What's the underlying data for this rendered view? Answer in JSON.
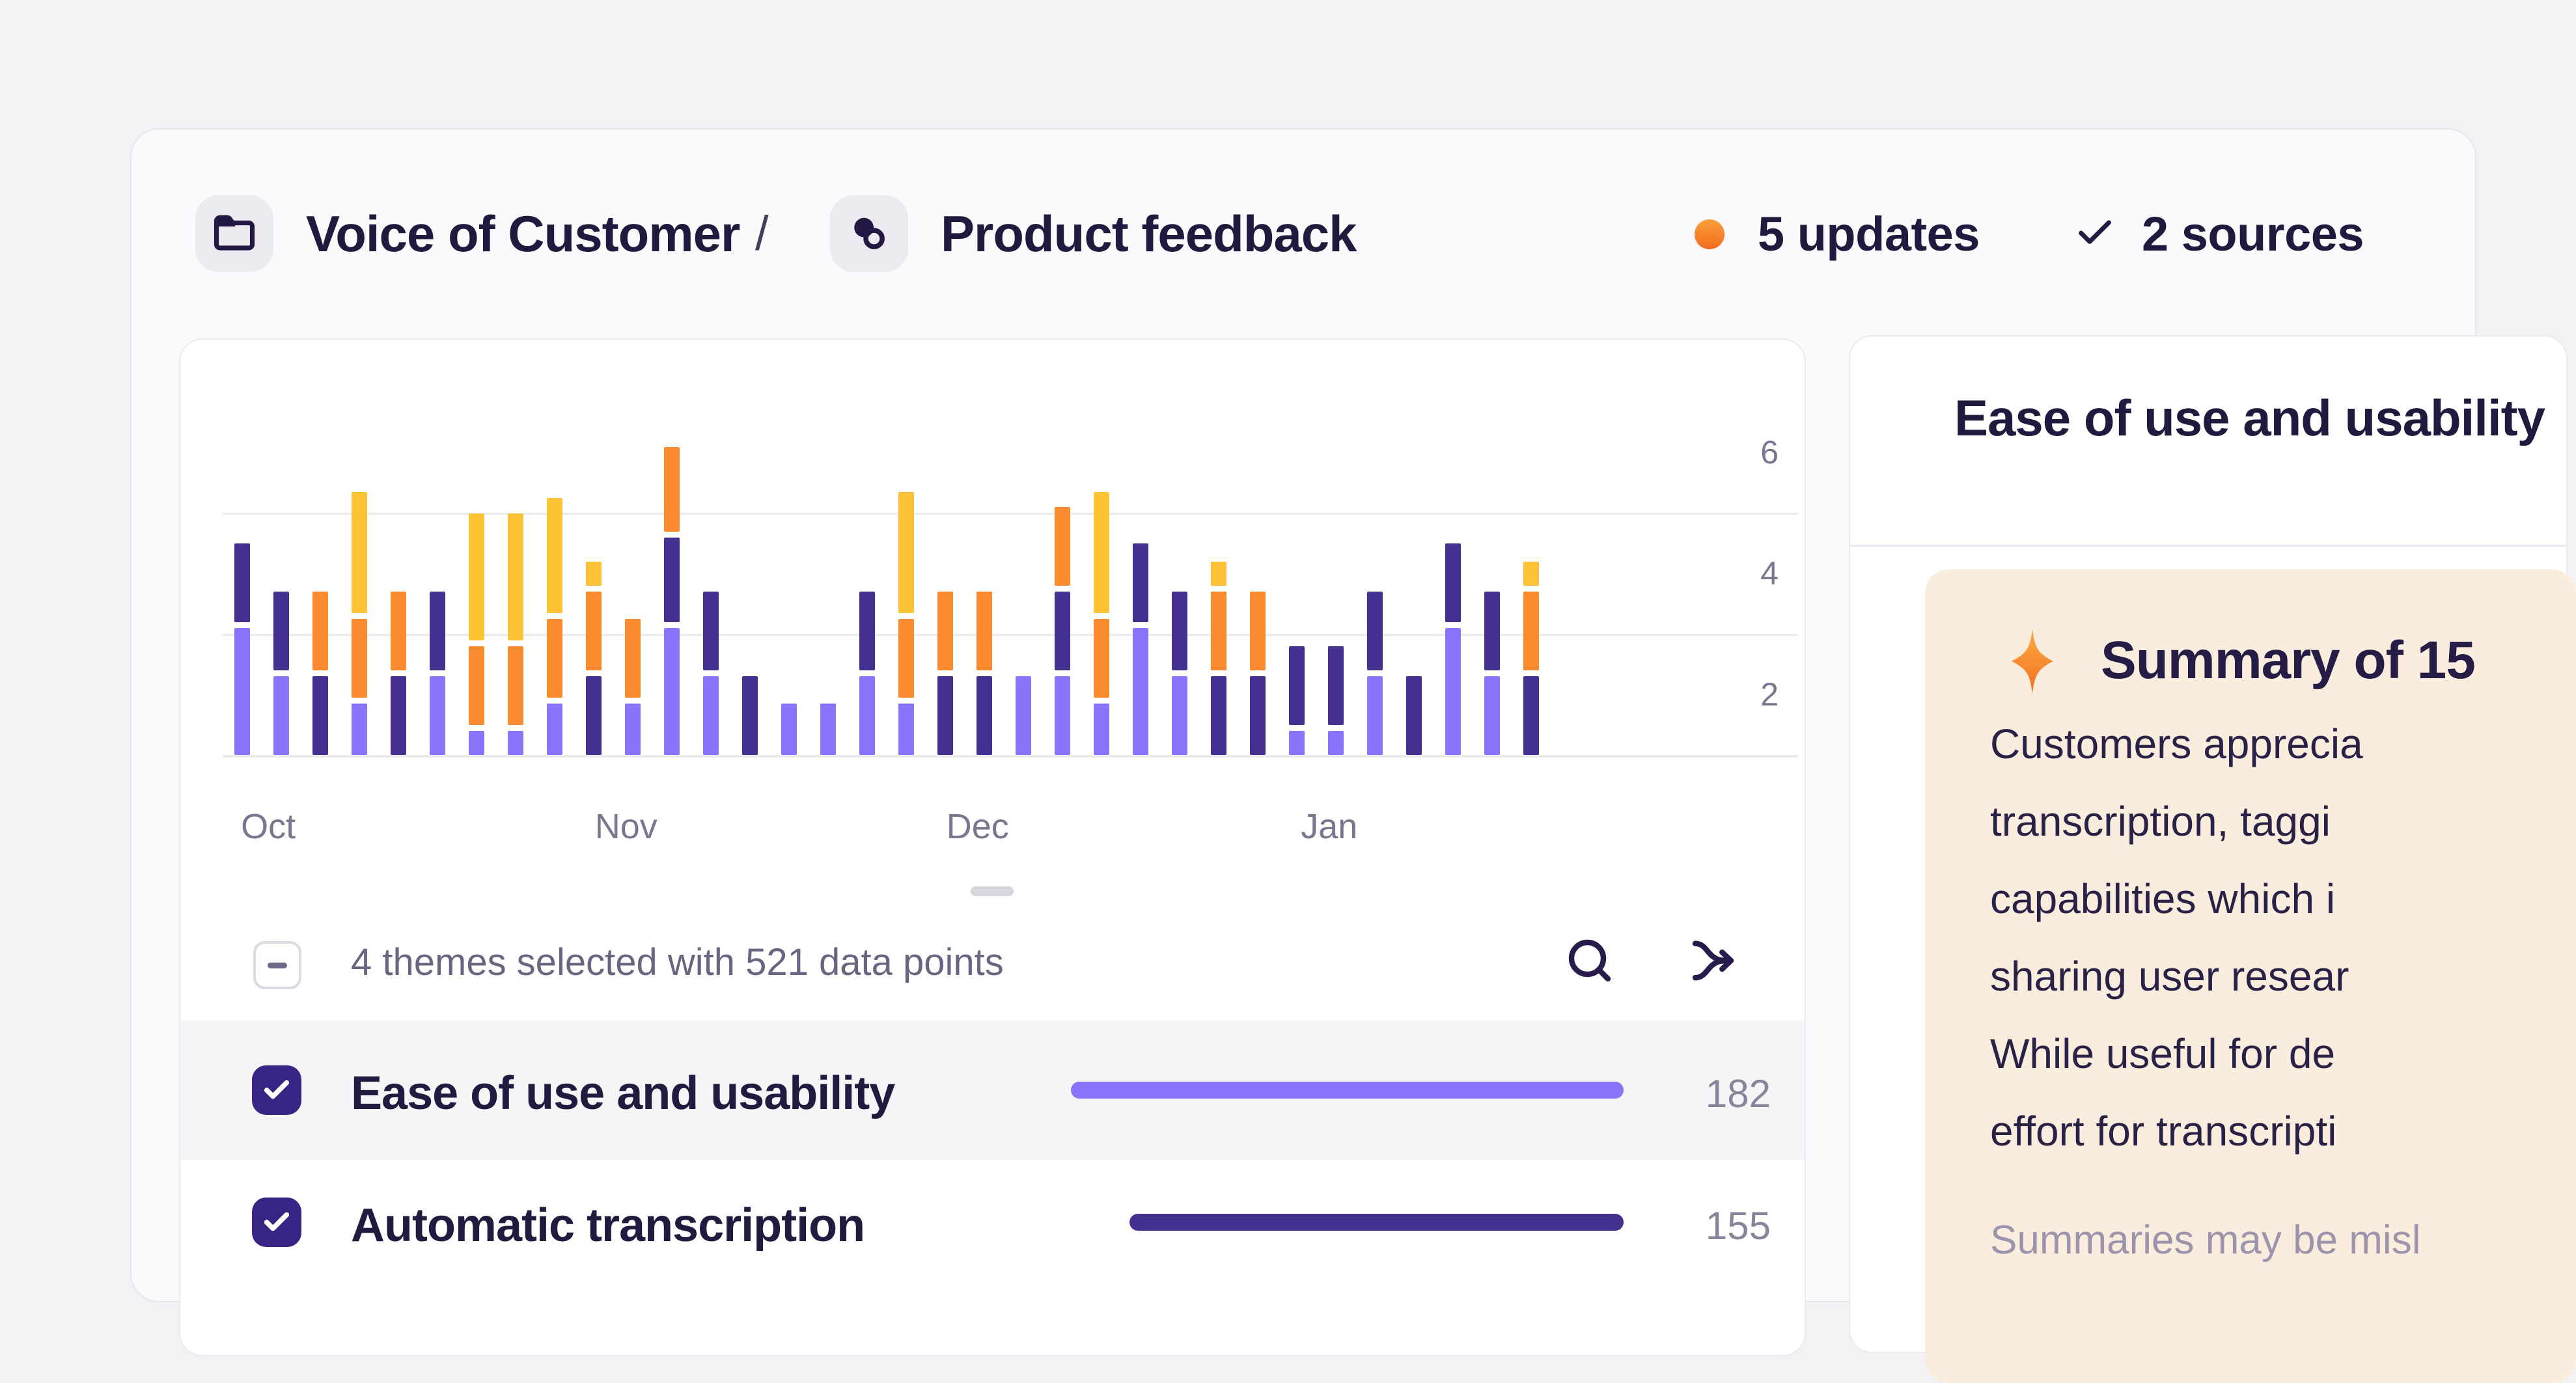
{
  "header": {
    "breadcrumb": [
      {
        "label": "Voice of Customer",
        "icon": "folder-icon"
      },
      {
        "label": "Product feedback",
        "icon": "theme-circles-icon"
      }
    ],
    "separator": "/",
    "status": {
      "updates_label": "5 updates",
      "sources_label": "2 sources",
      "updates_dot_color": "#F97316"
    }
  },
  "chart_data": {
    "type": "bar",
    "subtype": "stacked-segments-timeline",
    "title": "",
    "xlabel": "",
    "ylabel": "",
    "ylim": [
      0,
      7
    ],
    "y_ticks": [
      6,
      4,
      2
    ],
    "gridlines_at": [
      4,
      2
    ],
    "legend_position": "none",
    "x_axis_months": [
      {
        "label": "Oct",
        "col_pos": 0.67
      },
      {
        "label": "Nov",
        "col_pos": 9.83
      },
      {
        "label": "Dec",
        "col_pos": 18.83
      },
      {
        "label": "Jan",
        "col_pos": 27.83
      }
    ],
    "themes": {
      "t1": {
        "label": "Ease of use and usability",
        "color": "#8B74FB"
      },
      "t2": {
        "label": "Automatic transcription",
        "color": "#46308F"
      },
      "t3": {
        "label": "",
        "color": "#F98A2E"
      },
      "t4": {
        "label": "",
        "color": "#FBC335"
      }
    },
    "note": "segment values are estimated data-point counts read from bar heights (axis units)",
    "columns": [
      {
        "segments": [
          [
            "t1",
            2.1
          ],
          [
            "t2",
            1.3
          ]
        ]
      },
      {
        "segments": [
          [
            "t1",
            1.3
          ],
          [
            "t2",
            1.3
          ]
        ]
      },
      {
        "segments": [
          [
            "t2",
            1.3
          ],
          [
            "t3",
            1.3
          ]
        ]
      },
      {
        "segments": [
          [
            "t1",
            0.85
          ],
          [
            "t3",
            1.3
          ],
          [
            "t4",
            2.0
          ]
        ]
      },
      {
        "segments": [
          [
            "t2",
            1.3
          ],
          [
            "t3",
            1.3
          ]
        ]
      },
      {
        "segments": [
          [
            "t1",
            1.3
          ],
          [
            "t2",
            1.3
          ]
        ]
      },
      {
        "segments": [
          [
            "t1",
            0.4
          ],
          [
            "t3",
            1.3
          ],
          [
            "t4",
            2.1
          ]
        ]
      },
      {
        "segments": [
          [
            "t1",
            0.4
          ],
          [
            "t3",
            1.3
          ],
          [
            "t4",
            2.1
          ]
        ]
      },
      {
        "segments": [
          [
            "t1",
            0.85
          ],
          [
            "t3",
            1.3
          ],
          [
            "t4",
            1.9
          ]
        ]
      },
      {
        "segments": [
          [
            "t2",
            1.3
          ],
          [
            "t3",
            1.3
          ],
          [
            "t4",
            0.4
          ]
        ]
      },
      {
        "segments": [
          [
            "t1",
            0.85
          ],
          [
            "t3",
            1.3
          ]
        ]
      },
      {
        "segments": [
          [
            "t1",
            2.1
          ],
          [
            "t2",
            1.4
          ],
          [
            "t3",
            1.4
          ]
        ]
      },
      {
        "segments": [
          [
            "t1",
            1.3
          ],
          [
            "t2",
            1.3
          ]
        ]
      },
      {
        "segments": [
          [
            "t2",
            1.3
          ]
        ]
      },
      {
        "segments": [
          [
            "t1",
            0.85
          ]
        ]
      },
      {
        "segments": [
          [
            "t1",
            0.85
          ]
        ]
      },
      {
        "segments": [
          [
            "t1",
            1.3
          ],
          [
            "t2",
            1.3
          ]
        ]
      },
      {
        "segments": [
          [
            "t1",
            0.85
          ],
          [
            "t3",
            1.3
          ],
          [
            "t4",
            2.0
          ]
        ]
      },
      {
        "segments": [
          [
            "t2",
            1.3
          ],
          [
            "t3",
            1.3
          ]
        ]
      },
      {
        "segments": [
          [
            "t2",
            1.3
          ],
          [
            "t3",
            1.3
          ]
        ]
      },
      {
        "segments": [
          [
            "t1",
            1.3
          ]
        ]
      },
      {
        "segments": [
          [
            "t1",
            1.3
          ],
          [
            "t2",
            1.3
          ],
          [
            "t3",
            1.3
          ]
        ]
      },
      {
        "segments": [
          [
            "t1",
            0.85
          ],
          [
            "t3",
            1.3
          ],
          [
            "t4",
            2.0
          ]
        ]
      },
      {
        "segments": [
          [
            "t1",
            2.1
          ],
          [
            "t2",
            1.3
          ]
        ]
      },
      {
        "segments": [
          [
            "t1",
            1.3
          ],
          [
            "t2",
            1.3
          ]
        ]
      },
      {
        "segments": [
          [
            "t2",
            1.3
          ],
          [
            "t3",
            1.3
          ],
          [
            "t4",
            0.4
          ]
        ]
      },
      {
        "segments": [
          [
            "t2",
            1.3
          ],
          [
            "t3",
            1.3
          ]
        ]
      },
      {
        "segments": [
          [
            "t1",
            0.4
          ],
          [
            "t2",
            1.3
          ]
        ]
      },
      {
        "segments": [
          [
            "t1",
            0.4
          ],
          [
            "t2",
            1.3
          ]
        ]
      },
      {
        "segments": [
          [
            "t1",
            1.3
          ],
          [
            "t2",
            1.3
          ]
        ]
      },
      {
        "segments": [
          [
            "t2",
            1.3
          ]
        ]
      },
      {
        "segments": [
          [
            "t1",
            2.1
          ],
          [
            "t2",
            1.3
          ]
        ]
      },
      {
        "segments": [
          [
            "t1",
            1.3
          ],
          [
            "t2",
            1.3
          ]
        ]
      },
      {
        "segments": [
          [
            "t2",
            1.3
          ],
          [
            "t3",
            1.3
          ],
          [
            "t4",
            0.4
          ]
        ]
      }
    ]
  },
  "panel": {
    "selection_summary": "4 themes selected with 521 data points",
    "themes": [
      {
        "name": "Ease of use and usability",
        "count": "182",
        "selected": true,
        "color": "#8B74FB",
        "bar_len": 849,
        "highlight": true
      },
      {
        "name": "Automatic transcription",
        "count": "155",
        "selected": true,
        "color": "#46308F",
        "bar_len": 759,
        "highlight": false
      }
    ]
  },
  "detail": {
    "title": "Ease of use and usability",
    "summary_title": "Summary of 15",
    "body_lines": [
      "Customers apprecia",
      "transcription, taggi",
      "capabilities which i",
      "sharing user resear",
      "While useful for de",
      "effort for transcripti"
    ],
    "footnote": "Summaries may be misl"
  },
  "colors": {
    "page_bg": "#F2F1F4",
    "panel_bg": "#FAF9FB",
    "card_border": "#ECEAF0",
    "row_highlight": "#F5F4F7",
    "peach_card": "#FBEDDE",
    "checkbox": "#392384",
    "text_dark": "#211A3E",
    "text_muted": "#6B6480",
    "axis_text": "#7C7590"
  }
}
